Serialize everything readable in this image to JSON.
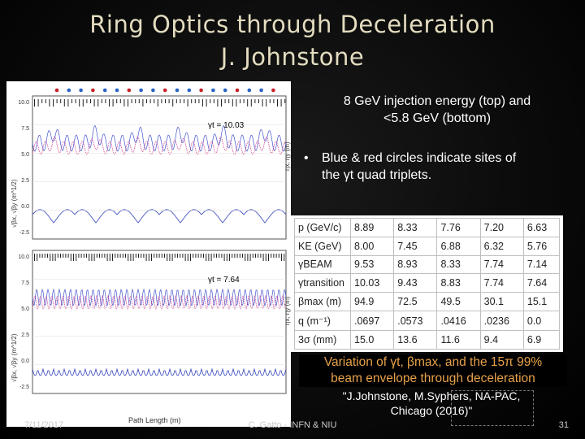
{
  "slide": {
    "title_line1": "Ring Optics  through Deceleration",
    "title_line2": "J. Johnstone"
  },
  "plot": {
    "upper_gamma_label": "γt = 10.03",
    "lower_gamma_label": "γt = 7.64",
    "upper_y_ticks": [
      "10.0",
      "7.5",
      "5.0",
      "2.5",
      "0.0",
      "-2.5"
    ],
    "lower_y_ticks": [
      "10.0",
      "7.5",
      "5.0",
      "2.5",
      "0.0",
      "-2.5"
    ],
    "x_axis_label": "Path Length (m)",
    "y_axis_label_left": "√βx, √βy (m^1/2)",
    "y_axis_label_right": "ηx, ηy (m)",
    "colors": {
      "beta_x": "#4455cc",
      "beta_y": "#cc3388",
      "dispersion": "#3344bb",
      "quad_blue": "#2a62c9",
      "quad_red": "#c8202a"
    }
  },
  "caption": {
    "top_line1": "8 GeV injection energy (top) and",
    "top_line2": "<5.8 GeV (bottom)",
    "bullet_mark": "•",
    "bullet_line1": "Blue & red circles indicate sites of",
    "bullet_line2": "the γt quad triplets."
  },
  "table": {
    "rows": [
      {
        "label": "p (GeV/c)",
        "values": [
          "8.89",
          "8.33",
          "7.76",
          "7.20",
          "6.63"
        ]
      },
      {
        "label": "KE (GeV)",
        "values": [
          "8.00",
          "7.45",
          "6.88",
          "6.32",
          "5.76"
        ]
      },
      {
        "label": "γBEAM",
        "values": [
          "9.53",
          "8.93",
          "8.33",
          "7.74",
          "7.14"
        ]
      },
      {
        "label": "γtransition",
        "values": [
          "10.03",
          "9.43",
          "8.83",
          "7.74",
          "7.64"
        ]
      },
      {
        "label": "βmax (m)",
        "values": [
          "94.9",
          "72.5",
          "49.5",
          "30.1",
          "15.1"
        ]
      },
      {
        "label": "q (m⁻¹)",
        "values": [
          ".0697",
          ".0573",
          ".0416",
          ".0236",
          "0.0"
        ]
      },
      {
        "label": "3σ (mm)",
        "values": [
          "15.0",
          "13.6",
          "11.6",
          "9.4",
          "6.9"
        ]
      }
    ]
  },
  "variation": {
    "line1": "Variation of γt, βmax, and the 15π 99%",
    "line2": "beam envelope through deceleration"
  },
  "reference": {
    "line1": "\"J.Johnstone, M.Syphers, NA-PAC,",
    "line2": "Chicago (2016)\""
  },
  "footer": {
    "date": "7/11/2017",
    "center": "C. Gatto - INFN & NIU",
    "page": "31"
  }
}
